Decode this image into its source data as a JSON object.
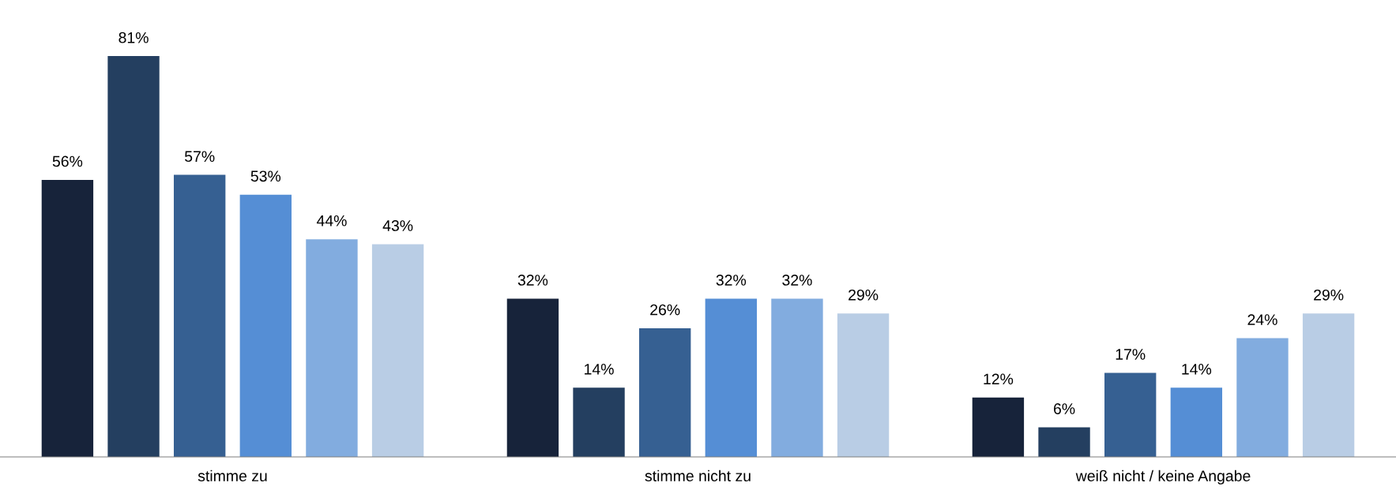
{
  "chart_data": {
    "type": "bar",
    "categories": [
      "stimme zu",
      "stimme nicht zu",
      "weiß nicht / keine Angabe"
    ],
    "series": [
      {
        "color": "#17233a",
        "values": [
          56,
          32,
          12
        ],
        "value_labels": [
          "56%",
          "32%",
          "12%"
        ]
      },
      {
        "color": "#243f60",
        "values": [
          81,
          14,
          6
        ],
        "value_labels": [
          "81%",
          "14%",
          "6%"
        ]
      },
      {
        "color": "#366092",
        "values": [
          57,
          26,
          17
        ],
        "value_labels": [
          "57%",
          "26%",
          "17%"
        ]
      },
      {
        "color": "#558ed5",
        "values": [
          53,
          32,
          14
        ],
        "value_labels": [
          "53%",
          "32%",
          "14%"
        ]
      },
      {
        "color": "#82acdf",
        "values": [
          44,
          32,
          24
        ],
        "value_labels": [
          "44%",
          "32%",
          "24%"
        ]
      },
      {
        "color": "#b9cde5",
        "values": [
          43,
          29,
          29
        ],
        "value_labels": [
          "43%",
          "29%",
          "29%"
        ]
      }
    ],
    "grid": false,
    "legend": false
  }
}
